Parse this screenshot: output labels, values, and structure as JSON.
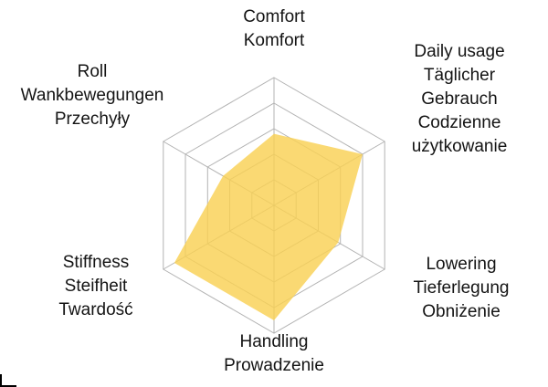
{
  "chart_data": {
    "type": "radar",
    "title": "",
    "legend": "none",
    "scale": {
      "min": 0,
      "max": 5,
      "rings": 5,
      "grid": "on"
    },
    "colors": {
      "fill": "#F9D154",
      "fill_opacity": 0.82,
      "grid": "#b3b3b3",
      "text": "#141414"
    },
    "axes": [
      {
        "id": "comfort",
        "label": "Comfort\nKomfort",
        "value": 2.8
      },
      {
        "id": "daily-usage",
        "label": "Daily usage\nTäglicher\nGebrauch\nCodzienne\nużytkowanie",
        "value": 4.0
      },
      {
        "id": "lowering",
        "label": "Lowering\nTieferlegung\nObniżenie",
        "value": 2.9
      },
      {
        "id": "handling",
        "label": "Handling\nProwadzenie",
        "value": 4.5
      },
      {
        "id": "stiffness",
        "label": "Stiffness\nSteifheit\nTwardość",
        "value": 4.5
      },
      {
        "id": "roll",
        "label": "Roll\nWankbewegungen\nPrzechyły",
        "value": 2.3
      }
    ]
  }
}
